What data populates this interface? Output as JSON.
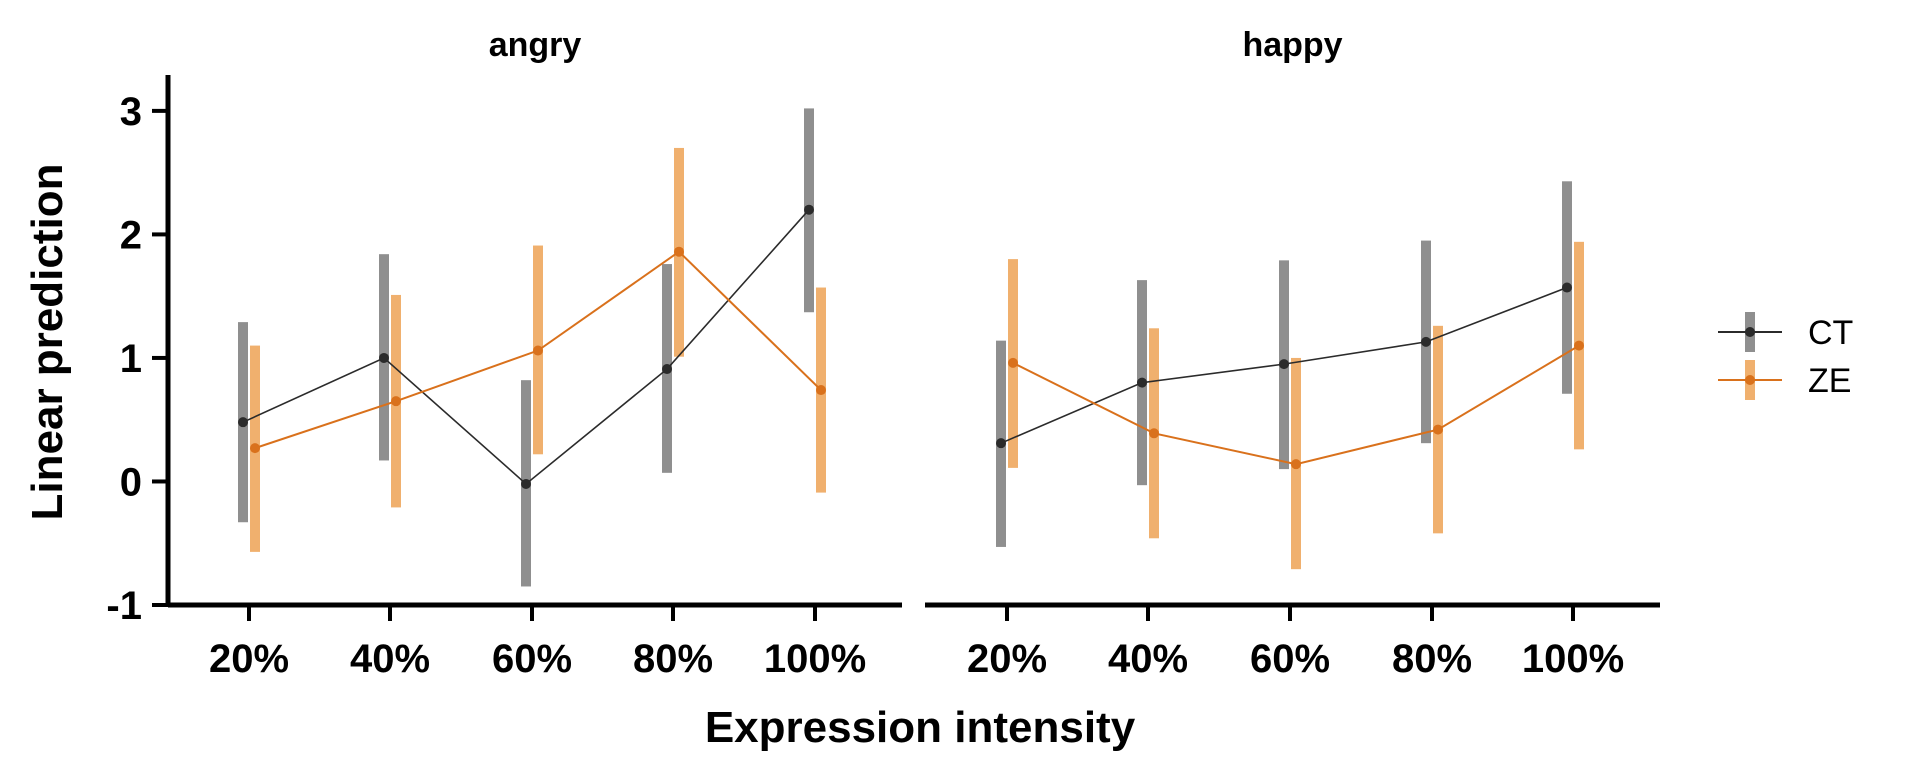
{
  "chart_data": {
    "type": "line",
    "xlabel": "Expression intensity",
    "ylabel": "Linear prediction",
    "ylim": [
      -1,
      3.25
    ],
    "yticks": [
      "-1",
      "0",
      "1",
      "2",
      "3"
    ],
    "categories": [
      "20%",
      "40%",
      "60%",
      "80%",
      "100%"
    ],
    "legend": {
      "position": "right",
      "entries": [
        "CT",
        "ZE"
      ]
    },
    "colors": {
      "CT": "#2b2b2b",
      "CT_ci": "#8f8f8f",
      "ZE": "#d9711c",
      "ZE_ci": "#f0b06e"
    },
    "panels": [
      {
        "title": "angry",
        "series": [
          {
            "name": "CT",
            "values": [
              0.48,
              1.0,
              -0.02,
              0.91,
              2.2
            ],
            "ci_low": [
              -0.33,
              0.17,
              -0.85,
              0.07,
              1.37
            ],
            "ci_high": [
              1.29,
              1.84,
              0.82,
              1.76,
              3.02
            ]
          },
          {
            "name": "ZE",
            "values": [
              0.27,
              0.65,
              1.06,
              1.86,
              0.74
            ],
            "ci_low": [
              -0.57,
              -0.21,
              0.22,
              1.01,
              -0.09
            ],
            "ci_high": [
              1.1,
              1.51,
              1.91,
              2.7,
              1.57
            ]
          }
        ]
      },
      {
        "title": "happy",
        "series": [
          {
            "name": "CT",
            "values": [
              0.31,
              0.8,
              0.95,
              1.13,
              1.57
            ],
            "ci_low": [
              -0.53,
              -0.03,
              0.1,
              0.31,
              0.71
            ],
            "ci_high": [
              1.14,
              1.63,
              1.79,
              1.95,
              2.43
            ]
          },
          {
            "name": "ZE",
            "values": [
              0.96,
              0.39,
              0.14,
              0.42,
              1.1
            ],
            "ci_low": [
              0.11,
              -0.46,
              -0.71,
              -0.42,
              0.26
            ],
            "ci_high": [
              1.8,
              1.24,
              1.0,
              1.26,
              1.94
            ]
          }
        ]
      }
    ]
  }
}
